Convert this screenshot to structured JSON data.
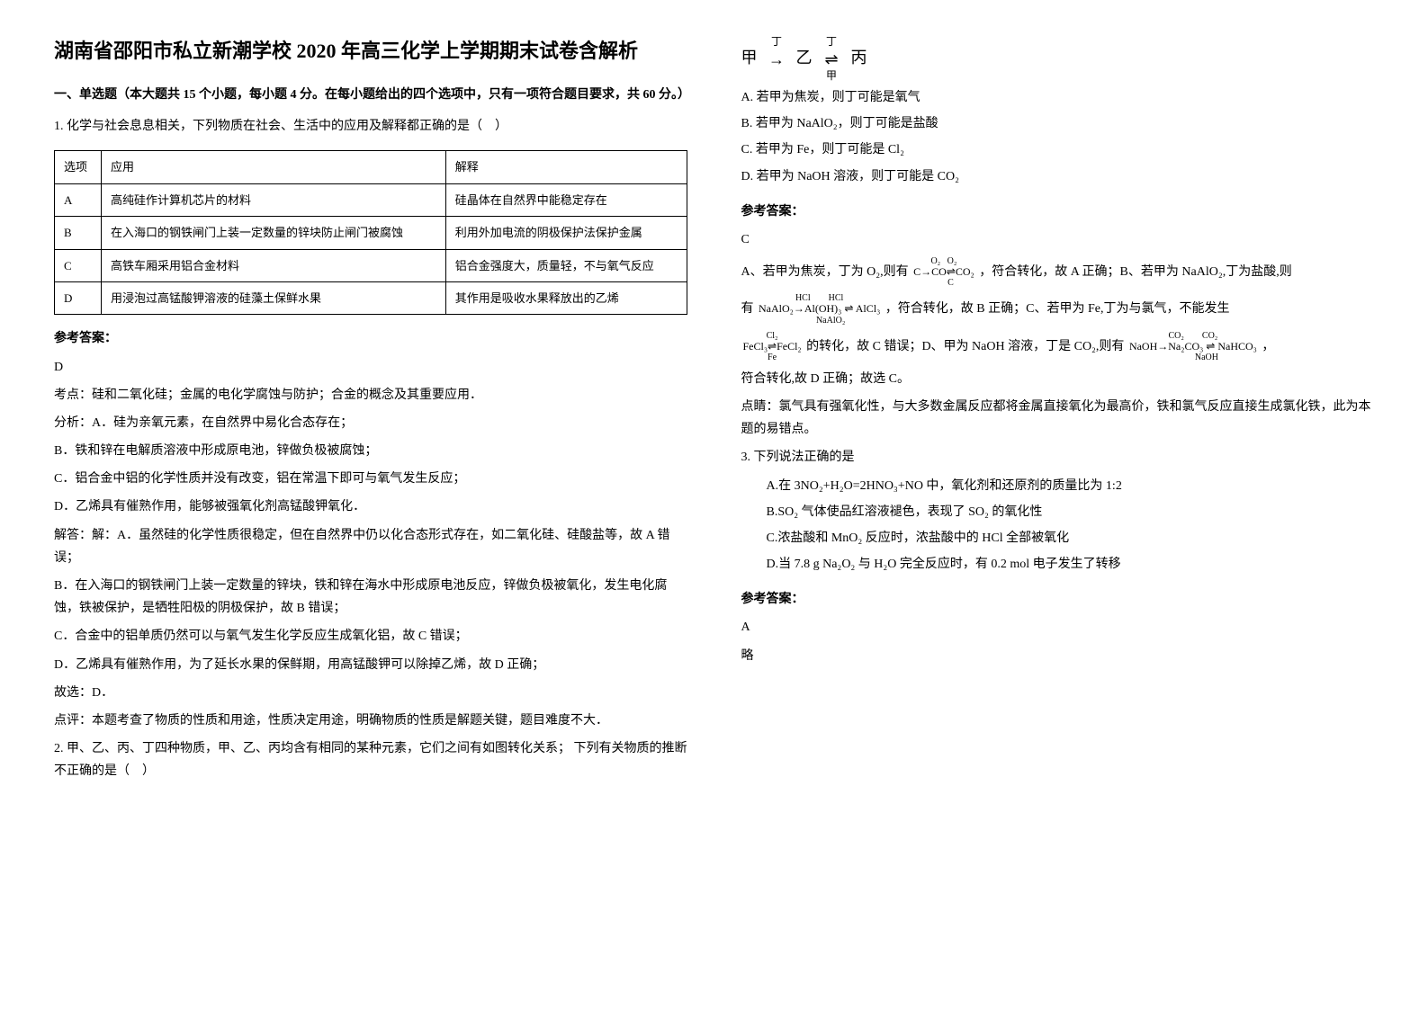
{
  "title": "湖南省邵阳市私立新潮学校 2020 年高三化学上学期期末试卷含解析",
  "part1_head": "一、单选题（本大题共 15 个小题，每小题 4 分。在每小题给出的四个选项中，只有一项符合题目要求，共 60 分。）",
  "q1": {
    "stem": "1. 化学与社会息息相关，下列物质在社会、生活中的应用及解释都正确的是（　）",
    "table": {
      "head": [
        "选项",
        "应用",
        "解释"
      ],
      "rows": [
        [
          "A",
          "高纯硅作计算机芯片的材料",
          "硅晶体在自然界中能稳定存在"
        ],
        [
          "B",
          "在入海口的钢铁闸门上装一定数量的锌块防止闸门被腐蚀",
          "利用外加电流的阴极保护法保护金属"
        ],
        [
          "C",
          "高铁车厢采用铝合金材料",
          "铝合金强度大，质量轻，不与氧气反应"
        ],
        [
          "D",
          "用浸泡过高锰酸钾溶液的硅藻土保鲜水果",
          "其作用是吸收水果释放出的乙烯"
        ]
      ]
    },
    "ans_label": "参考答案：",
    "ans": "D",
    "kaodian": "考点：硅和二氧化硅；金属的电化学腐蚀与防护；合金的概念及其重要应用．",
    "fenxi_a": "分析：A．硅为亲氧元素，在自然界中易化合态存在；",
    "fenxi_b": "B．铁和锌在电解质溶液中形成原电池，锌做负极被腐蚀；",
    "fenxi_c": "C．铝合金中铝的化学性质并没有改变，铝在常温下即可与氧气发生反应；",
    "fenxi_d": "D．乙烯具有催熟作用，能够被强氧化剂高锰酸钾氧化．",
    "jieda_a": "解答：解：A．虽然硅的化学性质很稳定，但在自然界中仍以化合态形式存在，如二氧化硅、硅酸盐等，故 A 错误；",
    "jieda_b": "B．在入海口的钢铁闸门上装一定数量的锌块，铁和锌在海水中形成原电池反应，锌做负极被氧化，发生电化腐蚀，铁被保护，是牺牲阳极的阴极保护，故 B 错误；",
    "jieda_c": "C．合金中的铝单质仍然可以与氧气发生化学反应生成氧化铝，故 C 错误；",
    "jieda_d": "D．乙烯具有催熟作用，为了延长水果的保鲜期，用高锰酸钾可以除掉乙烯，故 D 正确；",
    "guxuan": "故选：D．",
    "dianping": "点评：本题考查了物质的性质和用途，性质决定用途，明确物质的性质是解题关键，题目难度不大．"
  },
  "q2": {
    "stem": "2. 甲、乙、丙、丁四种物质，甲、乙、丙均含有相同的某种元素，它们之间有如图转化关系； 下列有关物质的推断不正确的是（　）",
    "diagram": {
      "a": "甲",
      "b": "乙",
      "c": "丙",
      "top": "丁",
      "bot": "甲"
    },
    "optA": "A. 若甲为焦炭，则丁可能是氧气",
    "optB": "B. 若甲为 NaAlO₂，则丁可能是盐酸",
    "optC": "C. 若甲为 Fe，则丁可能是 Cl₂",
    "optD": "D. 若甲为 NaOH 溶液，则丁可能是 CO₂",
    "ans_label": "参考答案：",
    "ans": "C",
    "expA_pre": "A、若甲为焦炭，丁为 O₂,则有",
    "expA_post": "，符合转化，故 A 正确；B、若甲为 NaAlO₂,丁为盐酸,则",
    "expB_pre": "有",
    "expB_post": "，符合转化，故 B 正确；C、若甲为 Fe,丁为与氯气，不能发生",
    "expC_post": "的转化，故 C 错误；D、甲为 NaOH 溶液，丁是 CO₂,则有",
    "expD_post": "，",
    "cont": "符合转化,故 D 正确；故选 C。",
    "dianjing": "点睛：氯气具有强氧化性，与大多数金属反应都将金属直接氧化为最高价，铁和氯气反应直接生成氯化铁，此为本题的易错点。"
  },
  "q3": {
    "stem": "3. 下列说法正确的是",
    "optA": "A.在 3NO₂+H₂O=2HNO₃+NO 中，氧化剂和还原剂的质量比为 1:2",
    "optB": "B.SO₂ 气体使品红溶液褪色，表现了 SO₂ 的氧化性",
    "optC": "C.浓盐酸和 MnO₂ 反应时，浓盐酸中的 HCl 全部被氧化",
    "optD": "D.当 7.8 g Na₂O₂ 与 H₂O 完全反应时，有 0.2 mol 电子发生了转移",
    "ans_label": "参考答案：",
    "ans": "A",
    "lue": "略"
  }
}
